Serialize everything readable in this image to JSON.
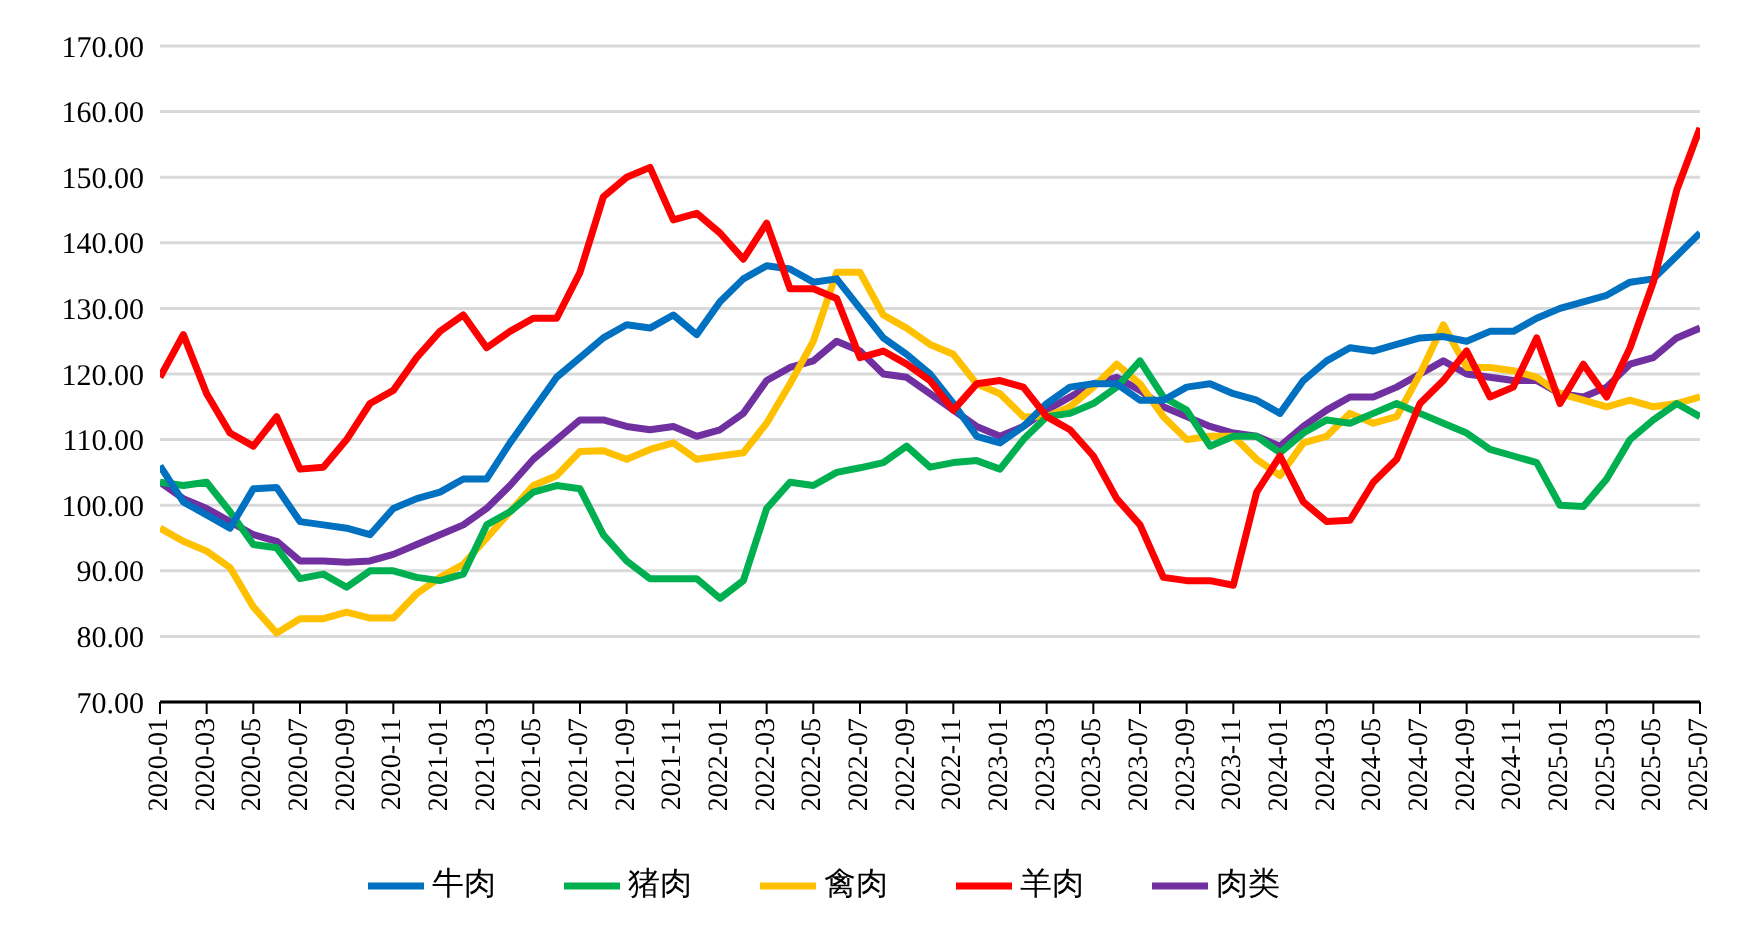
{
  "chart_data": {
    "type": "line",
    "categories": [
      "2020-01",
      null,
      "2020-03",
      null,
      "2020-05",
      null,
      "2020-07",
      null,
      "2020-09",
      null,
      "2020-11",
      null,
      "2021-01",
      null,
      "2021-03",
      null,
      "2021-05",
      null,
      "2021-07",
      null,
      "2021-09",
      null,
      "2021-11",
      null,
      "2022-01",
      null,
      "2022-03",
      null,
      "2022-05",
      null,
      "2022-07",
      null,
      "2022-09",
      null,
      "2022-11",
      null,
      "2023-01",
      null,
      "2023-03",
      null,
      "2023-05",
      null,
      "2023-07",
      null,
      "2023-09",
      null,
      "2023-11",
      null,
      "2024-01",
      null,
      "2024-03",
      null,
      "2024-05",
      null,
      "2024-07",
      null,
      "2024-09",
      null,
      "2024-11",
      null,
      "2025-01",
      null,
      "2025-03",
      null,
      "2025-05",
      null,
      "2025-07"
    ],
    "series": [
      {
        "name": "肉类",
        "color": "#7030a0",
        "values": [
          103.5,
          101,
          99.5,
          97.5,
          95.5,
          94.5,
          91.5,
          91.5,
          91.3,
          91.5,
          92.5,
          94,
          95.5,
          97,
          99.5,
          103,
          107,
          110,
          113,
          113,
          112,
          111.5,
          112,
          110.5,
          111.5,
          114,
          119,
          121,
          122,
          125,
          123.5,
          120,
          119.5,
          117,
          114.5,
          112,
          110.5,
          112,
          114.5,
          116.5,
          118.5,
          119.5,
          117.5,
          115,
          113.5,
          112,
          111,
          110.5,
          109,
          112,
          114.5,
          116.5,
          116.5,
          118,
          120,
          122,
          120,
          119.5,
          119,
          119,
          117,
          116.5,
          118,
          121.5,
          122.5,
          125.5,
          127
        ]
      },
      {
        "name": "禽肉",
        "color": "#ffc000",
        "values": [
          96.5,
          94.5,
          93,
          90.5,
          84.5,
          80.5,
          82.7,
          82.7,
          83.7,
          82.8,
          82.8,
          86.5,
          89,
          91,
          95,
          99,
          103,
          104.5,
          108.2,
          108.3,
          107,
          108.5,
          109.5,
          107,
          107.5,
          108,
          112.5,
          118.5,
          125,
          135.5,
          135.5,
          129,
          127,
          124.5,
          123,
          118.5,
          117,
          113.5,
          113.5,
          115,
          118,
          121.5,
          118.5,
          113.5,
          110,
          110.5,
          110.5,
          107,
          104.5,
          109.5,
          110.5,
          114,
          112.5,
          113.5,
          120,
          127.5,
          121,
          121,
          120.5,
          119.5,
          117,
          116,
          115,
          116,
          115,
          115.5,
          116.5
        ]
      },
      {
        "name": "猪肉",
        "color": "#00b050",
        "values": [
          103.5,
          103,
          103.5,
          99,
          94,
          93.5,
          88.8,
          89.5,
          87.5,
          90,
          90,
          89,
          88.5,
          89.5,
          97,
          99,
          102,
          103,
          102.5,
          95.5,
          91.5,
          88.8,
          88.8,
          88.8,
          85.8,
          88.5,
          99.5,
          103.5,
          103,
          105,
          105.7,
          106.5,
          109,
          105.8,
          106.5,
          106.8,
          105.5,
          110,
          113.5,
          114,
          115.5,
          118,
          122,
          116.5,
          114.5,
          109,
          110.5,
          110.5,
          108,
          111,
          113,
          112.5,
          114,
          115.5,
          114,
          112.5,
          111,
          108.5,
          107.5,
          106.5,
          100,
          99.8,
          104,
          110,
          113,
          115.5,
          113.5
        ]
      },
      {
        "name": "牛肉",
        "color": "#0070c0",
        "values": [
          106,
          100.5,
          98.5,
          96.5,
          102.5,
          102.7,
          97.5,
          97,
          96.5,
          95.5,
          99.5,
          101,
          102,
          104,
          104,
          109.5,
          114.5,
          119.5,
          122.5,
          125.5,
          127.5,
          127,
          129,
          126,
          131,
          134.5,
          136.5,
          136,
          134,
          134.5,
          130,
          125.5,
          123,
          120,
          115.5,
          110.5,
          109.5,
          112,
          115.5,
          118,
          118.5,
          118.5,
          116,
          116,
          118,
          118.5,
          117,
          116,
          114,
          119,
          122,
          124,
          123.5,
          124.5,
          125.5,
          125.7,
          125,
          126.5,
          126.5,
          128.5,
          130,
          131,
          132,
          134,
          134.5,
          138,
          141.5
        ]
      },
      {
        "name": "羊肉",
        "color": "#ff0000",
        "values": [
          119.5,
          126,
          117,
          111,
          109,
          113.5,
          105.5,
          105.8,
          110,
          115.5,
          117.5,
          122.5,
          126.5,
          129,
          124,
          126.5,
          128.5,
          128.5,
          135.5,
          147,
          150,
          151.5,
          143.5,
          144.5,
          141.5,
          137.5,
          143,
          133,
          133,
          131.5,
          122.5,
          123.5,
          121.5,
          119,
          114.5,
          118.5,
          119,
          118,
          113.5,
          111.5,
          107.5,
          101,
          97,
          89,
          88.5,
          88.5,
          87.8,
          102,
          107.5,
          100.5,
          97.5,
          97.7,
          103.5,
          107,
          115.5,
          119,
          123.5,
          116.5,
          118,
          125.5,
          115.5,
          121.5,
          116.5,
          124,
          134,
          148,
          157.5
        ]
      }
    ],
    "ylim": [
      70,
      170
    ],
    "yticks": [
      {
        "value": 70,
        "label": "70.00"
      },
      {
        "value": 80,
        "label": "80.00"
      },
      {
        "value": 90,
        "label": "90.00"
      },
      {
        "value": 100,
        "label": "100.00"
      },
      {
        "value": 110,
        "label": "110.00"
      },
      {
        "value": 120,
        "label": "120.00"
      },
      {
        "value": 130,
        "label": "130.00"
      },
      {
        "value": 140,
        "label": "140.00"
      },
      {
        "value": 150,
        "label": "150.00"
      },
      {
        "value": 160,
        "label": "160.00"
      },
      {
        "value": 170,
        "label": "170.00"
      }
    ],
    "grid": "y",
    "legend": "bottom",
    "marker": "none",
    "line_style": "solid"
  }
}
